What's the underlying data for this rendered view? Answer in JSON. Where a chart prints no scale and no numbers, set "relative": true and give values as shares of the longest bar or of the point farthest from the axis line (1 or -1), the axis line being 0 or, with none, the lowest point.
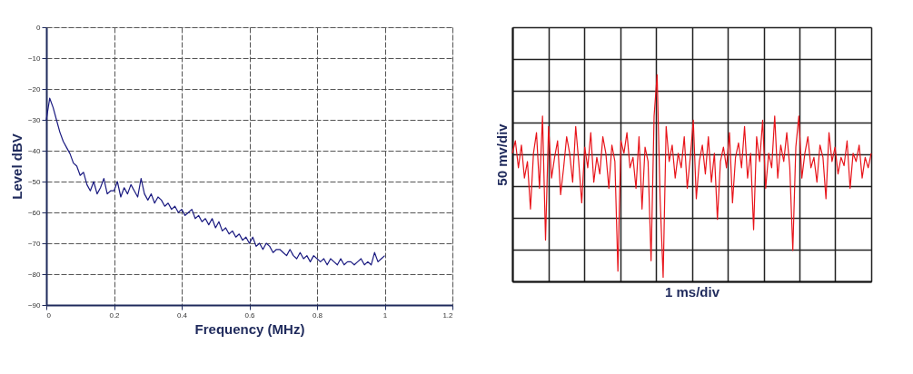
{
  "chart_data": [
    {
      "type": "line",
      "xlabel": "Frequency (MHz)",
      "ylabel": "Level dBV",
      "xlim": [
        0,
        1.2
      ],
      "ylim": [
        -90,
        0
      ],
      "xticks": [
        0,
        0.2,
        0.4,
        0.6,
        0.8,
        1,
        1.2
      ],
      "yticks": [
        0,
        -10,
        -20,
        -30,
        -40,
        -50,
        -60,
        -70,
        -80,
        -90
      ],
      "grid": true,
      "x": [
        0,
        0.01,
        0.02,
        0.03,
        0.04,
        0.05,
        0.06,
        0.07,
        0.08,
        0.09,
        0.1,
        0.11,
        0.12,
        0.13,
        0.14,
        0.15,
        0.16,
        0.17,
        0.18,
        0.19,
        0.2,
        0.21,
        0.22,
        0.23,
        0.24,
        0.25,
        0.26,
        0.27,
        0.28,
        0.29,
        0.3,
        0.31,
        0.32,
        0.33,
        0.34,
        0.35,
        0.36,
        0.37,
        0.38,
        0.39,
        0.4,
        0.41,
        0.42,
        0.43,
        0.44,
        0.45,
        0.46,
        0.47,
        0.48,
        0.49,
        0.5,
        0.51,
        0.52,
        0.53,
        0.54,
        0.55,
        0.56,
        0.57,
        0.58,
        0.59,
        0.6,
        0.61,
        0.62,
        0.63,
        0.64,
        0.65,
        0.66,
        0.67,
        0.68,
        0.69,
        0.7,
        0.71,
        0.72,
        0.73,
        0.74,
        0.75,
        0.76,
        0.77,
        0.78,
        0.79,
        0.8,
        0.81,
        0.82,
        0.83,
        0.84,
        0.85,
        0.86,
        0.87,
        0.88,
        0.89,
        0.9,
        0.91,
        0.92,
        0.93,
        0.94,
        0.95,
        0.96,
        0.97,
        0.98,
        0.99,
        1
      ],
      "series": [
        {
          "color": "#1a1a80",
          "values": [
            -30,
            -23,
            -26,
            -30,
            -34,
            -37,
            -39,
            -41,
            -44,
            -45,
            -48,
            -47,
            -51,
            -53,
            -50,
            -54,
            -52,
            -49,
            -54,
            -53,
            -53,
            -50,
            -55,
            -52,
            -54,
            -51,
            -53,
            -55,
            -49,
            -54,
            -56,
            -54,
            -57,
            -55,
            -56,
            -58,
            -57,
            -59,
            -58,
            -60,
            -59,
            -61,
            -60,
            -59,
            -62,
            -61,
            -63,
            -62,
            -64,
            -62,
            -65,
            -63,
            -66,
            -65,
            -67,
            -66,
            -68,
            -67,
            -69,
            -68,
            -70,
            -68,
            -71,
            -70,
            -72,
            -70,
            -71,
            -73,
            -72,
            -72,
            -73,
            -74,
            -72,
            -74,
            -75,
            -73,
            -75,
            -74,
            -76,
            -74,
            -75,
            -76,
            -75,
            -77,
            -75,
            -76,
            -77,
            -75,
            -77,
            -76,
            -76,
            -77,
            -76,
            -75,
            -77,
            -76,
            -77,
            -73,
            -76,
            -75,
            -74
          ]
        }
      ]
    },
    {
      "type": "line",
      "xlabel": "1 ms/div",
      "ylabel": "50 mv/div",
      "relative": true,
      "grid": true,
      "tick_labels": false,
      "categories": [
        null,
        null,
        null,
        null,
        null,
        null,
        null,
        null,
        null,
        null,
        null,
        null,
        null,
        null,
        null,
        null,
        null,
        null,
        null,
        null,
        null,
        null,
        null,
        null,
        null,
        null,
        null,
        null,
        null,
        null,
        null,
        null,
        null,
        null,
        null,
        null,
        null,
        null,
        null,
        null,
        null,
        null,
        null,
        null,
        null,
        null,
        null,
        null,
        null,
        null,
        null,
        null,
        null,
        null,
        null,
        null,
        null,
        null,
        null,
        null,
        null,
        null,
        null,
        null,
        null,
        null,
        null,
        null,
        null,
        null,
        null,
        null,
        null,
        null,
        null,
        null,
        null,
        null,
        null,
        null,
        null,
        null,
        null,
        null,
        null,
        null,
        null,
        null,
        null,
        null,
        null,
        null,
        null,
        null,
        null,
        null,
        null,
        null,
        null,
        null,
        null,
        null,
        null,
        null,
        null,
        null,
        null,
        null,
        null,
        null,
        null,
        null,
        null,
        null,
        null,
        null,
        null,
        null,
        null,
        null
      ],
      "series": [
        {
          "color": "#e8141a",
          "values": [
            0.62,
            0.68,
            0.55,
            0.66,
            0.5,
            0.58,
            0.35,
            0.62,
            0.72,
            0.45,
            0.8,
            0.2,
            0.75,
            0.5,
            0.6,
            0.68,
            0.42,
            0.55,
            0.7,
            0.62,
            0.48,
            0.75,
            0.58,
            0.38,
            0.65,
            0.55,
            0.72,
            0.48,
            0.6,
            0.52,
            0.7,
            0.62,
            0.45,
            0.66,
            0.58,
            0.05,
            0.68,
            0.62,
            0.72,
            0.55,
            0.6,
            0.45,
            0.7,
            0.35,
            0.65,
            0.58,
            0.1,
            0.8,
            1.0,
            0.4,
            0.02,
            0.75,
            0.58,
            0.66,
            0.5,
            0.62,
            0.55,
            0.7,
            0.45,
            0.6,
            0.78,
            0.4,
            0.58,
            0.66,
            0.52,
            0.7,
            0.48,
            0.62,
            0.3,
            0.58,
            0.65,
            0.55,
            0.72,
            0.38,
            0.6,
            0.67,
            0.55,
            0.75,
            0.5,
            0.62,
            0.25,
            0.7,
            0.58,
            0.78,
            0.45,
            0.62,
            0.55,
            0.8,
            0.5,
            0.66,
            0.58,
            0.72,
            0.55,
            0.15,
            0.65,
            0.8,
            0.5,
            0.62,
            0.7,
            0.55,
            0.6,
            0.48,
            0.66,
            0.6,
            0.4,
            0.72,
            0.58,
            0.65,
            0.52,
            0.6,
            0.56,
            0.68,
            0.45,
            0.62,
            0.58,
            0.66,
            0.5,
            0.6,
            0.55,
            0.62
          ]
        }
      ]
    }
  ]
}
